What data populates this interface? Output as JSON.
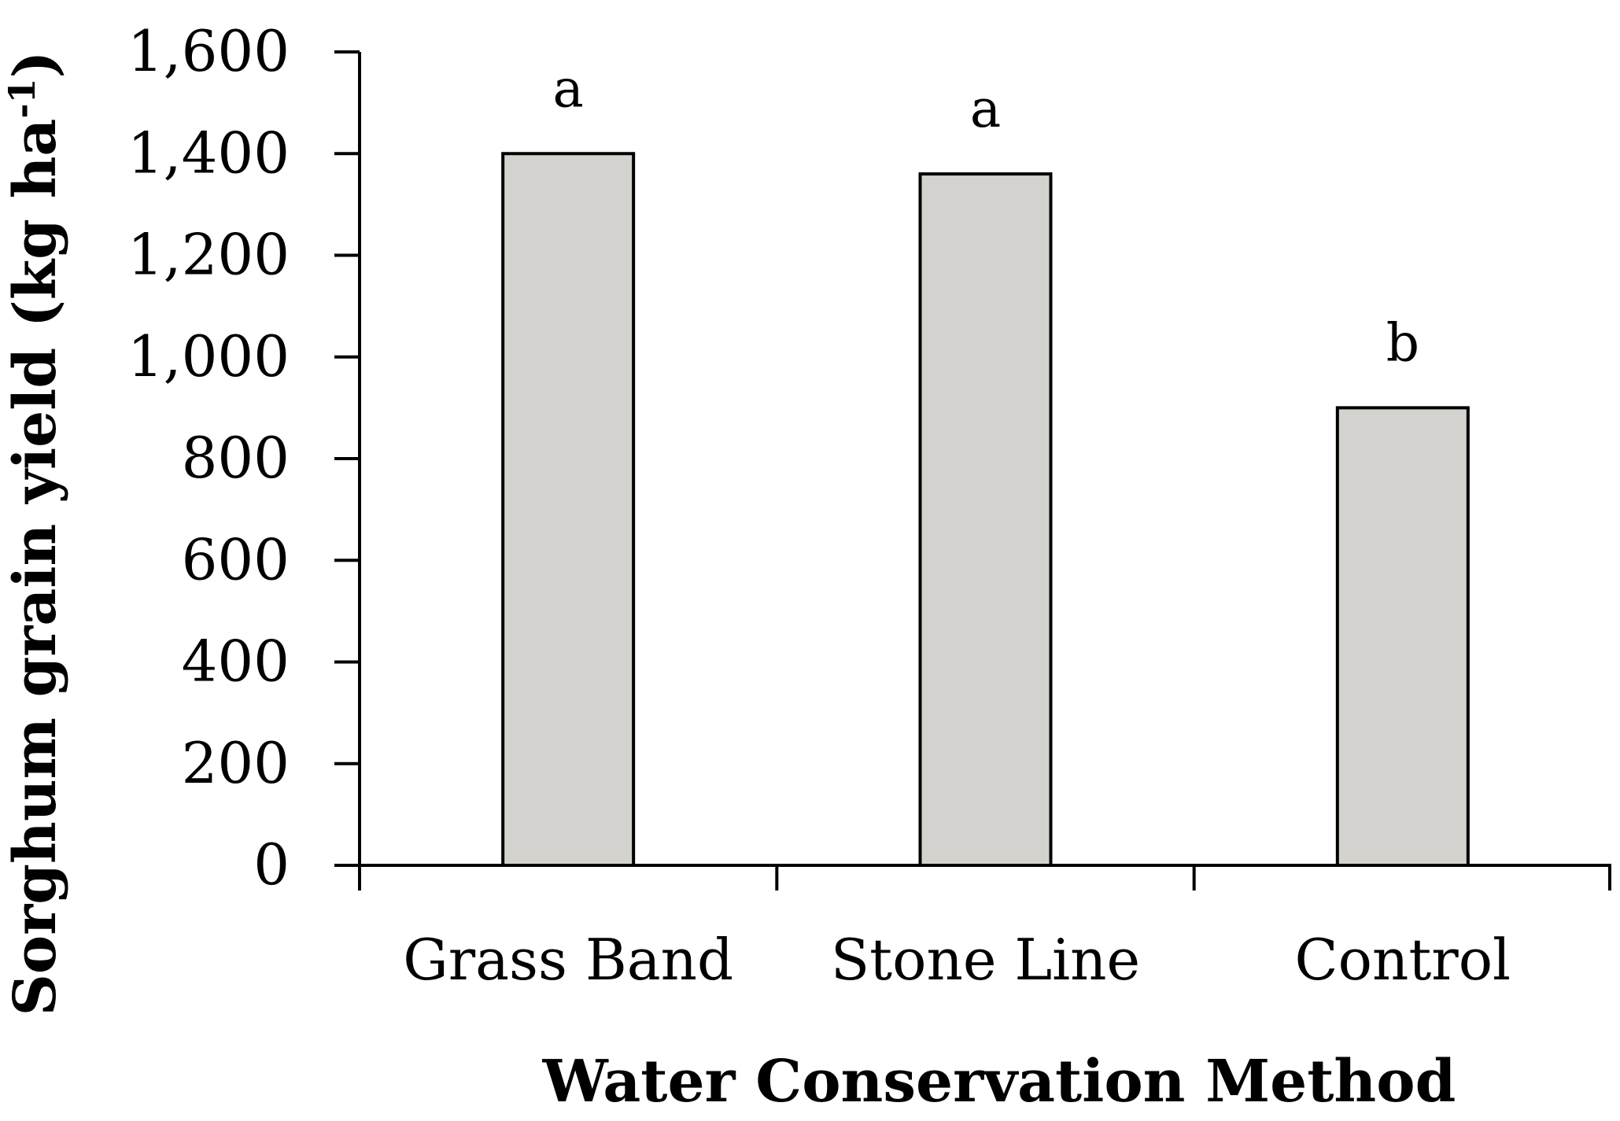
{
  "chart_data": {
    "type": "bar",
    "title": "",
    "xlabel": "Water Conservation Method",
    "ylabel": {
      "main": "Sorghum grain yield (kg ha",
      "superscript": "-1",
      "close": ")"
    },
    "categories": [
      "Grass Band",
      "Stone Line",
      "Control"
    ],
    "values": [
      1400,
      1360,
      900
    ],
    "significance_letters": [
      "a",
      "a",
      "b"
    ],
    "ylim": [
      0,
      1600
    ],
    "yticks": [
      0,
      200,
      400,
      600,
      800,
      1000,
      1200,
      1400,
      1600
    ],
    "ytick_labels": [
      "0",
      "200",
      "400",
      "600",
      "800",
      "1,000",
      "1,200",
      "1,400",
      "1,600"
    ],
    "grid": false,
    "legend": "none",
    "colors": {
      "bar_fill": "#d3d2ce",
      "bar_stroke": "#000000",
      "axis": "#000000"
    }
  }
}
